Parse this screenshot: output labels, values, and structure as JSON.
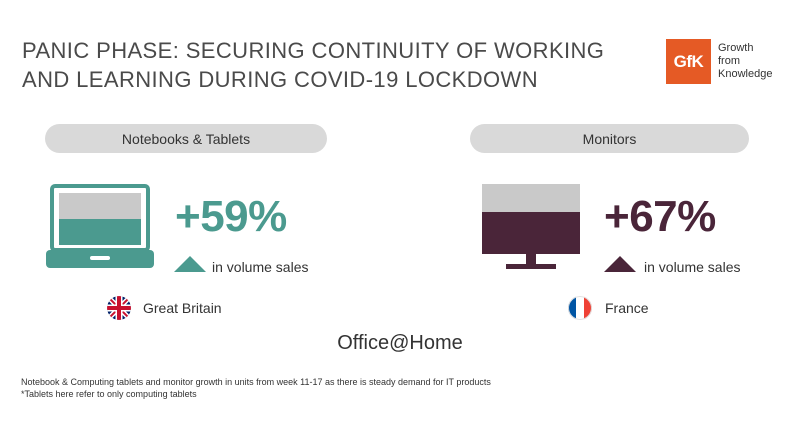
{
  "title": {
    "line1": "PANIC PHASE: SECURING CONTINUITY OF WORKING",
    "line2": "AND LEARNING DURING COVID-19 LOCKDOWN"
  },
  "logo": {
    "mark": "GfK",
    "line1": "Growth",
    "line2": "from",
    "line3": "Knowledge",
    "color": "#e55a25"
  },
  "left_panel": {
    "category": "Notebooks & Tablets",
    "icon": "laptop-icon",
    "change": "+59%",
    "caption": "in volume sales",
    "country": "Great Britain",
    "flag": "uk-flag-icon",
    "accent": "#4b9a8f"
  },
  "right_panel": {
    "category": "Monitors",
    "icon": "monitor-icon",
    "change": "+67%",
    "caption": "in volume sales",
    "country": "France",
    "flag": "france-flag-icon",
    "accent": "#4a2539"
  },
  "center_label": "Office@Home",
  "footnote": {
    "line1": "Notebook & Computing tablets and monitor growth in units from week 11-17 as there is steady demand for IT products",
    "line2": "*Tablets here refer to only computing tablets"
  }
}
